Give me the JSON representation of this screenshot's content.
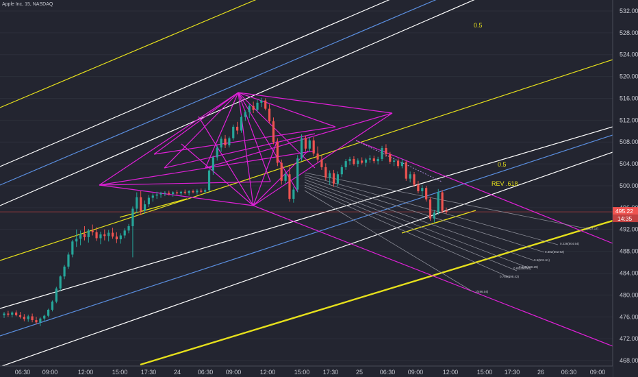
{
  "symbol_title": "Apple Inc, 15, NASDAQ",
  "price_badge": {
    "price": "495.22",
    "countdown": "14:35"
  },
  "chart_data": {
    "type": "candlestick",
    "title": "",
    "ylim": [
      467,
      534
    ],
    "y_ticks": [
      468,
      472,
      476,
      480,
      484,
      488,
      492,
      496,
      500,
      504,
      508,
      512,
      516,
      520,
      524,
      528,
      532
    ],
    "y_tick_labels": [
      "468.00",
      "472.00",
      "476.00",
      "480.00",
      "484.00",
      "488.00",
      "492.00",
      "496.00",
      "500.00",
      "504.00",
      "508.00",
      "512.00",
      "516.00",
      "520.00",
      "524.00",
      "528.00",
      "532.00"
    ],
    "x_tick_labels": [
      "06:30",
      "09:00",
      "12:00",
      "15:00",
      "17:30",
      "24",
      "06:30",
      "09:00",
      "12:00",
      "15:00",
      "17:30",
      "25",
      "06:30",
      "09:00",
      "12:00",
      "15:00",
      "17:30",
      "26",
      "06:30",
      "09:00"
    ],
    "current_price": 495.22,
    "annotations": [
      {
        "text": "0.5",
        "color": "#e6e01c"
      },
      {
        "text": "0.5",
        "color": "#e6e01c"
      },
      {
        "text": "REV .618",
        "color": "#e6e01c"
      }
    ],
    "fib_labels": [
      "1(507.17)",
      "0.236(504.54)",
      "0.382(502.92)",
      "0.5(501.61)",
      "0.618(500.29)",
      "0.65(499.94)",
      "0.786(498.42)",
      "1(496.04)"
    ],
    "candles": [
      [
        476.3,
        476.9,
        475.8,
        476.6
      ],
      [
        476.6,
        477.1,
        476.0,
        476.4
      ],
      [
        476.4,
        477.0,
        475.9,
        476.8
      ],
      [
        476.8,
        477.2,
        476.1,
        476.3
      ],
      [
        476.3,
        476.9,
        475.7,
        476.0
      ],
      [
        476.0,
        476.5,
        475.2,
        475.6
      ],
      [
        475.6,
        476.4,
        475.1,
        476.1
      ],
      [
        476.1,
        476.6,
        475.0,
        475.4
      ],
      [
        475.4,
        476.0,
        474.6,
        475.0
      ],
      [
        475.0,
        475.9,
        474.3,
        475.7
      ],
      [
        475.7,
        476.4,
        475.2,
        476.2
      ],
      [
        476.2,
        477.5,
        475.9,
        477.3
      ],
      [
        477.3,
        479.0,
        477.0,
        478.8
      ],
      [
        478.8,
        481.5,
        478.5,
        481.2
      ],
      [
        481.2,
        483.6,
        480.8,
        483.4
      ],
      [
        483.4,
        485.5,
        482.9,
        485.2
      ],
      [
        485.2,
        487.8,
        484.8,
        487.4
      ],
      [
        487.4,
        490.1,
        486.9,
        489.8
      ],
      [
        489.8,
        492.0,
        488.8,
        490.3
      ],
      [
        490.3,
        491.8,
        489.1,
        491.2
      ],
      [
        491.2,
        492.6,
        490.0,
        490.6
      ],
      [
        490.6,
        492.1,
        489.6,
        491.8
      ],
      [
        491.8,
        492.9,
        490.9,
        491.5
      ],
      [
        491.5,
        492.4,
        489.9,
        490.4
      ],
      [
        490.4,
        491.6,
        489.3,
        491.1
      ],
      [
        491.1,
        492.0,
        490.0,
        490.8
      ],
      [
        490.8,
        491.9,
        489.8,
        491.4
      ],
      [
        491.4,
        492.3,
        490.3,
        490.7
      ],
      [
        490.7,
        491.5,
        489.5,
        490.2
      ],
      [
        490.2,
        491.3,
        489.4,
        490.9
      ],
      [
        490.9,
        492.2,
        490.4,
        491.8
      ],
      [
        491.8,
        493.0,
        491.3,
        492.6
      ],
      [
        492.6,
        496.2,
        486.9,
        495.8
      ],
      [
        495.8,
        498.8,
        495.0,
        497.9
      ],
      [
        497.9,
        499.0,
        494.6,
        495.4
      ],
      [
        495.4,
        497.3,
        494.9,
        496.6
      ],
      [
        496.6,
        498.3,
        496.1,
        497.8
      ],
      [
        497.8,
        498.6,
        497.1,
        498.2
      ],
      [
        498.2,
        498.9,
        497.6,
        498.4
      ],
      [
        498.4,
        498.9,
        497.8,
        498.6
      ],
      [
        498.6,
        499.0,
        498.1,
        498.7
      ],
      [
        498.7,
        499.1,
        498.2,
        498.5
      ],
      [
        498.5,
        499.0,
        498.0,
        498.8
      ],
      [
        498.8,
        499.2,
        498.3,
        498.6
      ],
      [
        498.6,
        499.1,
        498.1,
        498.9
      ],
      [
        498.9,
        499.3,
        498.4,
        498.7
      ],
      [
        498.7,
        499.2,
        498.2,
        499.0
      ],
      [
        499.0,
        499.3,
        498.6,
        498.8
      ],
      [
        498.8,
        499.4,
        498.4,
        499.1
      ],
      [
        499.1,
        499.5,
        498.6,
        498.9
      ],
      [
        498.9,
        499.5,
        498.5,
        499.2
      ],
      [
        499.2,
        503.0,
        498.9,
        502.8
      ],
      [
        502.8,
        505.5,
        502.0,
        505.2
      ],
      [
        505.2,
        507.4,
        504.6,
        507.0
      ],
      [
        507.0,
        509.0,
        506.2,
        508.6
      ],
      [
        508.6,
        509.3,
        506.9,
        507.4
      ],
      [
        507.4,
        509.0,
        507.0,
        508.7
      ],
      [
        508.7,
        511.2,
        508.3,
        510.8
      ],
      [
        510.8,
        511.7,
        509.4,
        510.1
      ],
      [
        510.1,
        512.9,
        509.7,
        512.6
      ],
      [
        512.6,
        513.8,
        511.9,
        513.5
      ],
      [
        513.5,
        515.0,
        512.4,
        514.6
      ],
      [
        514.6,
        515.4,
        513.3,
        513.9
      ],
      [
        513.9,
        515.7,
        513.4,
        515.2
      ],
      [
        515.2,
        516.1,
        514.4,
        515.6
      ],
      [
        515.6,
        516.0,
        513.8,
        514.1
      ],
      [
        514.1,
        514.9,
        511.4,
        511.8
      ],
      [
        511.8,
        512.5,
        507.6,
        508.0
      ],
      [
        508.0,
        508.7,
        503.6,
        504.2
      ],
      [
        504.2,
        504.8,
        500.2,
        500.9
      ],
      [
        500.9,
        502.5,
        500.4,
        502.1
      ],
      [
        502.1,
        503.5,
        497.1,
        497.6
      ],
      [
        497.6,
        499.8,
        496.9,
        499.3
      ],
      [
        499.3,
        505.6,
        498.8,
        505.0
      ],
      [
        505.0,
        509.4,
        504.5,
        508.7
      ],
      [
        508.7,
        509.2,
        506.3,
        506.8
      ],
      [
        506.8,
        508.8,
        506.2,
        508.3
      ],
      [
        508.3,
        508.9,
        505.4,
        505.9
      ],
      [
        505.9,
        507.2,
        504.3,
        504.8
      ],
      [
        504.8,
        505.5,
        502.9,
        503.4
      ],
      [
        503.4,
        504.1,
        501.0,
        501.5
      ],
      [
        501.5,
        502.8,
        500.2,
        502.3
      ],
      [
        502.3,
        502.9,
        499.8,
        500.4
      ],
      [
        500.4,
        502.6,
        499.9,
        502.1
      ],
      [
        502.1,
        503.8,
        501.6,
        503.4
      ],
      [
        503.4,
        504.9,
        502.9,
        504.5
      ],
      [
        504.5,
        505.3,
        503.8,
        504.9
      ],
      [
        504.9,
        505.4,
        503.7,
        504.0
      ],
      [
        504.0,
        505.0,
        503.4,
        504.6
      ],
      [
        504.6,
        505.2,
        503.9,
        504.2
      ],
      [
        504.2,
        505.1,
        503.5,
        504.8
      ],
      [
        504.8,
        505.6,
        504.2,
        505.0
      ],
      [
        505.0,
        505.5,
        504.1,
        504.5
      ],
      [
        504.5,
        505.3,
        503.9,
        504.9
      ],
      [
        504.9,
        507.3,
        504.5,
        506.9
      ],
      [
        506.9,
        507.6,
        505.3,
        505.8
      ],
      [
        505.8,
        506.2,
        504.0,
        504.4
      ],
      [
        504.4,
        505.1,
        503.6,
        504.6
      ],
      [
        504.6,
        505.0,
        503.2,
        503.6
      ],
      [
        503.6,
        504.9,
        503.2,
        504.3
      ],
      [
        504.3,
        504.6,
        500.9,
        501.3
      ],
      [
        501.3,
        502.6,
        500.6,
        502.1
      ],
      [
        502.1,
        502.5,
        499.8,
        500.2
      ],
      [
        500.2,
        500.9,
        498.6,
        499.0
      ],
      [
        499.0,
        500.1,
        497.9,
        499.6
      ],
      [
        499.6,
        500.0,
        497.1,
        497.5
      ],
      [
        497.5,
        497.9,
        493.6,
        494.0
      ],
      [
        494.0,
        495.6,
        493.3,
        495.1
      ],
      [
        495.1,
        499.4,
        494.7,
        498.8
      ],
      [
        498.8,
        499.2,
        495.0,
        495.4
      ],
      [
        495.4,
        496.0,
        494.8,
        495.22
      ]
    ]
  }
}
